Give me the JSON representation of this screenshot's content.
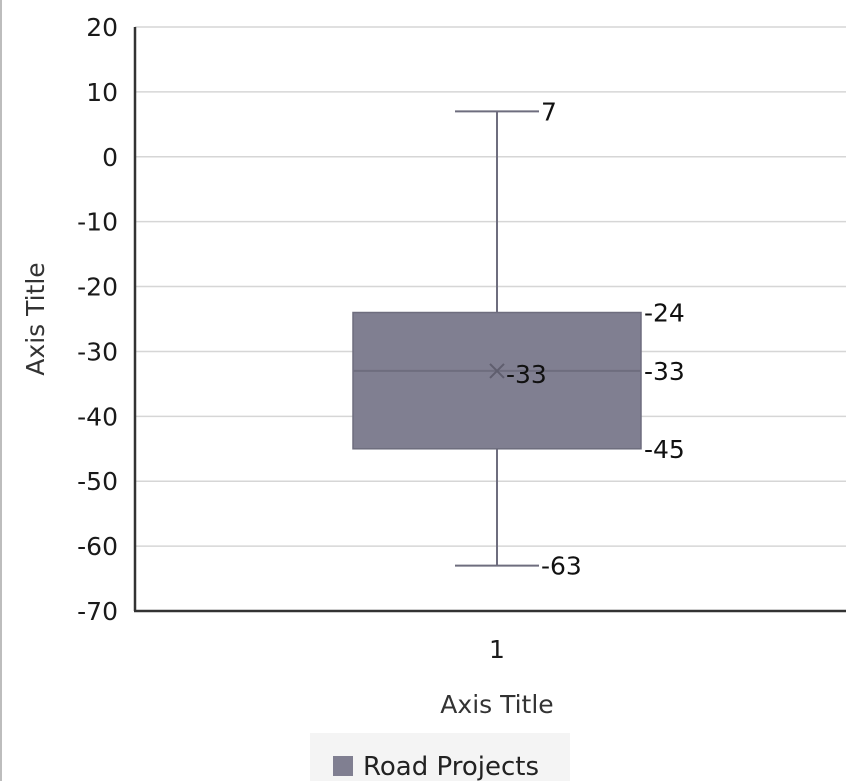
{
  "chart_data": {
    "type": "box",
    "title": "",
    "xlabel": "Axis Title",
    "ylabel": "Axis Title",
    "ylim": [
      -70,
      20
    ],
    "y_ticks": [
      "20",
      "10",
      "0",
      "-10",
      "-20",
      "-30",
      "-40",
      "-50",
      "-60",
      "-70"
    ],
    "y_tick_values": [
      20,
      10,
      0,
      -10,
      -20,
      -30,
      -40,
      -50,
      -60,
      -70
    ],
    "categories": [
      "1"
    ],
    "grid": true,
    "legend": "bottom",
    "series": [
      {
        "name": "Road Projects",
        "color": "#807f91",
        "whisker_high": 7,
        "q3": -24,
        "median": -33,
        "mean": -33,
        "q1": -45,
        "whisker_low": -63,
        "labels": {
          "whisker_high": "7",
          "q3": "-24",
          "median": "-33",
          "mean": "-33",
          "q1": "-45",
          "whisker_low": "-63"
        }
      }
    ]
  }
}
